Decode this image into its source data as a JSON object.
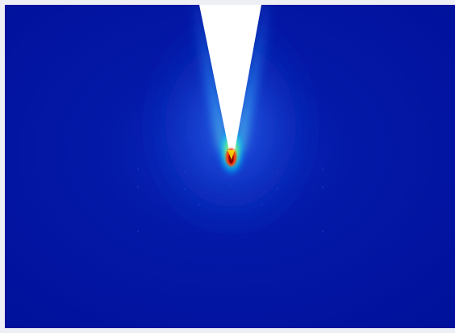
{
  "figure": {
    "kind": "field-intensity-heatmap",
    "colormap": "jet",
    "colors": {
      "background": "#00129f",
      "page": "#eeeef5",
      "probe": "#ffffff",
      "hot": "#8b0000",
      "warm": "#ff3300",
      "mid": "#ffe600",
      "cool": "#00d4ff"
    },
    "elements": [
      "probe-tip",
      "hotspot",
      "glow"
    ]
  }
}
